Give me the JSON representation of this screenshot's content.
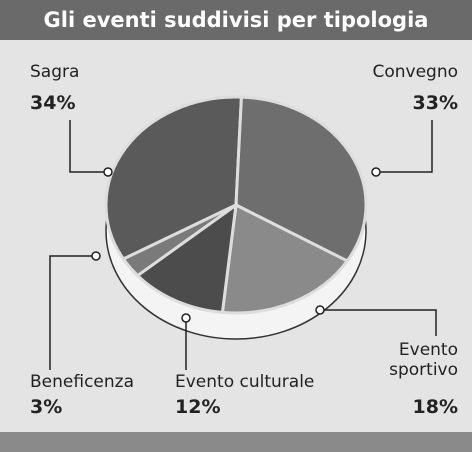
{
  "chart_data": {
    "type": "pie",
    "title": "Gli eventi suddivisi per tipologia",
    "categories": [
      "Sagra",
      "Convegno",
      "Evento sportivo",
      "Evento culturale",
      "Beneficenza"
    ],
    "values": [
      34,
      33,
      18,
      12,
      3
    ],
    "value_labels": [
      "34%",
      "33%",
      "18%",
      "12%",
      "3%"
    ],
    "colors": [
      "#5a5a5a",
      "#6e6e6e",
      "#8a8a8a",
      "#4c4c4c",
      "#7a7a7a"
    ]
  }
}
